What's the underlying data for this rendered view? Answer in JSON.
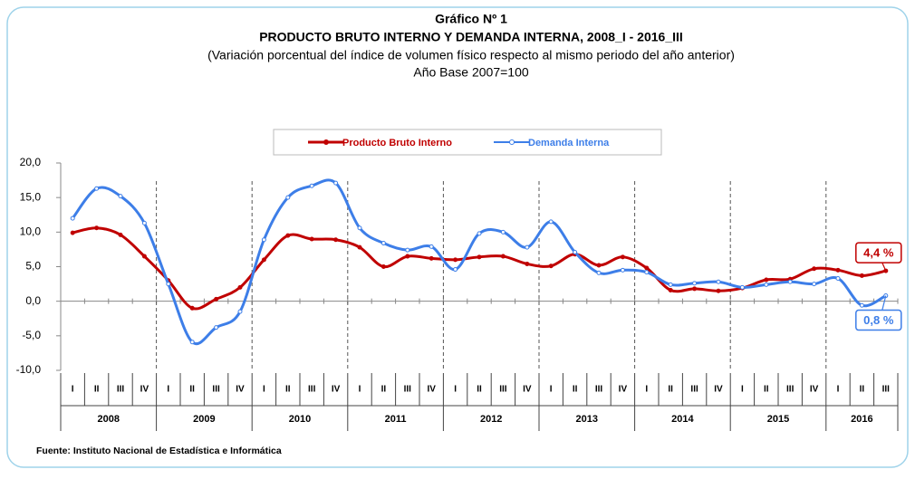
{
  "chart_data": {
    "type": "line",
    "title": "Gráfico Nº 1",
    "subtitle": "PRODUCTO BRUTO INTERNO Y DEMANDA INTERNA, 2008_I - 2016_III",
    "description": "(Variación porcentual del índice de volumen físico respecto al mismo periodo del año anterior)",
    "base": "Año Base 2007=100",
    "source": "Fuente: Instituto Nacional de Estadística e Informática",
    "categories": [
      "I",
      "II",
      "III",
      "IV",
      "I",
      "II",
      "III",
      "IV",
      "I",
      "II",
      "III",
      "IV",
      "I",
      "II",
      "III",
      "IV",
      "I",
      "II",
      "III",
      "IV",
      "I",
      "II",
      "III",
      "IV",
      "I",
      "II",
      "III",
      "IV",
      "I",
      "II",
      "III",
      "IV",
      "I",
      "II",
      "III"
    ],
    "years": [
      "2008",
      "2009",
      "2010",
      "2011",
      "2012",
      "2013",
      "2014",
      "2015",
      "2016"
    ],
    "series": [
      {
        "name": "Producto Bruto Interno",
        "color": "#c00000",
        "values": [
          9.9,
          10.6,
          9.6,
          6.5,
          3.0,
          -1.0,
          0.3,
          2.0,
          6.0,
          9.5,
          9.0,
          8.9,
          7.8,
          5.0,
          6.5,
          6.2,
          6.0,
          6.4,
          6.5,
          5.4,
          5.1,
          6.8,
          5.2,
          6.4,
          4.8,
          1.6,
          1.8,
          1.5,
          1.9,
          3.1,
          3.2,
          4.7,
          4.5,
          3.7,
          4.4
        ],
        "annotation": "4,4 %"
      },
      {
        "name": "Demanda Interna",
        "color": "#3d7ee8",
        "values": [
          12.0,
          16.3,
          15.2,
          11.3,
          2.5,
          -5.9,
          -3.8,
          -1.5,
          8.9,
          15.0,
          16.7,
          17.1,
          10.6,
          8.4,
          7.4,
          7.9,
          4.6,
          9.8,
          10.0,
          7.8,
          11.5,
          7.1,
          4.1,
          4.5,
          4.2,
          2.4,
          2.6,
          2.8,
          2.0,
          2.4,
          2.8,
          2.5,
          3.3,
          -0.6,
          0.8
        ],
        "annotation": "0,8 %"
      }
    ],
    "ylim": [
      -10,
      20
    ],
    "yticks": [
      {
        "value": -10,
        "label": "-10,0"
      },
      {
        "value": -5,
        "label": "-5,0"
      },
      {
        "value": 0,
        "label": "0,0"
      },
      {
        "value": 5,
        "label": "5,0"
      },
      {
        "value": 10,
        "label": "10,0"
      },
      {
        "value": 15,
        "label": "15,0"
      },
      {
        "value": 20,
        "label": "20,0"
      }
    ]
  }
}
